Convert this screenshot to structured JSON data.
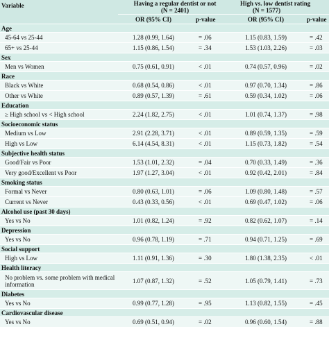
{
  "header": {
    "variable_label": "Variable",
    "group1_title": "Having a regular dentist or not",
    "group1_n": "(N = 2401)",
    "group2_title": "High vs. low dentist rating",
    "group2_n": "(N = 1577)",
    "or_label": "OR (95% CI)",
    "p_label": "p-value"
  },
  "sections": [
    {
      "title": "Age",
      "rows": [
        {
          "label": "45-64 vs 25-44",
          "or1": "1.28 (0.99, 1.64)",
          "p1": "= .06",
          "or2": "1.15 (0.83, 1.59)",
          "p2": "= .42"
        },
        {
          "label": "65+ vs 25-44",
          "or1": "1.15 (0.86, 1.54)",
          "p1": "= .34",
          "or2": "1.53 (1.03, 2.26)",
          "p2": "= .03"
        }
      ]
    },
    {
      "title": "Sex",
      "rows": [
        {
          "label": "Men vs Women",
          "or1": "0.75 (0.61, 0.91)",
          "p1": "< .01",
          "or2": "0.74 (0.57, 0.96)",
          "p2": "= .02"
        }
      ]
    },
    {
      "title": "Race",
      "rows": [
        {
          "label": "Black vs White",
          "or1": "0.68 (0.54, 0.86)",
          "p1": "< .01",
          "or2": "0.97 (0.70, 1.34)",
          "p2": "= .86"
        },
        {
          "label": "Other vs White",
          "or1": "0.89 (0.57, 1.39)",
          "p1": "= .61",
          "or2": "0.59 (0.34, 1.02)",
          "p2": "= .06"
        }
      ]
    },
    {
      "title": "Education",
      "rows": [
        {
          "label": "≥ High school vs < High school",
          "or1": "2.24 (1.82, 2.75)",
          "p1": "< .01",
          "or2": "1.01 (0.74, 1.37)",
          "p2": "= .98"
        }
      ]
    },
    {
      "title": "Socioeconomic status",
      "rows": [
        {
          "label": "Medium vs Low",
          "or1": "2.91 (2.28, 3.71)",
          "p1": "< .01",
          "or2": "0.89 (0.59, 1.35)",
          "p2": "= .59"
        },
        {
          "label": "High vs Low",
          "or1": "6.14 (4.54, 8.31)",
          "p1": "< .01",
          "or2": "1.15 (0.73, 1.82)",
          "p2": "= .54"
        }
      ]
    },
    {
      "title": "Subjective health status",
      "rows": [
        {
          "label": "Good/Fair vs Poor",
          "or1": "1.53 (1.01, 2.32)",
          "p1": "= .04",
          "or2": "0.70 (0.33, 1.49)",
          "p2": "= .36"
        },
        {
          "label": "Very good/Excellent vs Poor",
          "or1": "1.97 (1.27, 3.04)",
          "p1": "< .01",
          "or2": "0.92 (0.42, 2.01)",
          "p2": "= .84"
        }
      ]
    },
    {
      "title": "Smoking status",
      "rows": [
        {
          "label": "Formal vs Never",
          "or1": "0.80 (0.63, 1.01)",
          "p1": "= .06",
          "or2": "1.09 (0.80, 1.48)",
          "p2": "= .57"
        },
        {
          "label": "Current vs Never",
          "or1": "0.43 (0.33, 0.56)",
          "p1": "< .01",
          "or2": "0.69 (0.47, 1.02)",
          "p2": "= .06"
        }
      ]
    },
    {
      "title": "Alcohol use (past 30 days)",
      "rows": [
        {
          "label": "Yes vs No",
          "or1": "1.01 (0.82, 1.24)",
          "p1": "= .92",
          "or2": "0.82 (0.62, 1.07)",
          "p2": "= .14"
        }
      ]
    },
    {
      "title": "Depression",
      "rows": [
        {
          "label": "Yes vs No",
          "or1": "0.96 (0.78, 1.19)",
          "p1": "= .71",
          "or2": "0.94 (0.71, 1.25)",
          "p2": "= .69"
        }
      ]
    },
    {
      "title": "Social support",
      "rows": [
        {
          "label": "High vs Low",
          "or1": "1.11 (0.91, 1.36)",
          "p1": "= .30",
          "or2": "1.80 (1.38, 2.35)",
          "p2": "< .01"
        }
      ]
    },
    {
      "title": "Health literacy",
      "rows": [
        {
          "label": "No problem vs. some problem with medical information",
          "or1": "1.07 (0.87, 1.32)",
          "p1": "= .52",
          "or2": "1.05 (0.79, 1.41)",
          "p2": "= .73",
          "tall": true
        }
      ]
    },
    {
      "title": "Diabetes",
      "rows": [
        {
          "label": "Yes vs No",
          "or1": "0.99 (0.77, 1.28)",
          "p1": "= .95",
          "or2": "1.13 (0.82, 1.55)",
          "p2": "= .45"
        }
      ]
    },
    {
      "title": "Cardiovascular disease",
      "rows": [
        {
          "label": "Yes vs No",
          "or1": "0.69 (0.51, 0.94)",
          "p1": "= .02",
          "or2": "0.96 (0.60, 1.54)",
          "p2": "= .88"
        }
      ]
    }
  ]
}
